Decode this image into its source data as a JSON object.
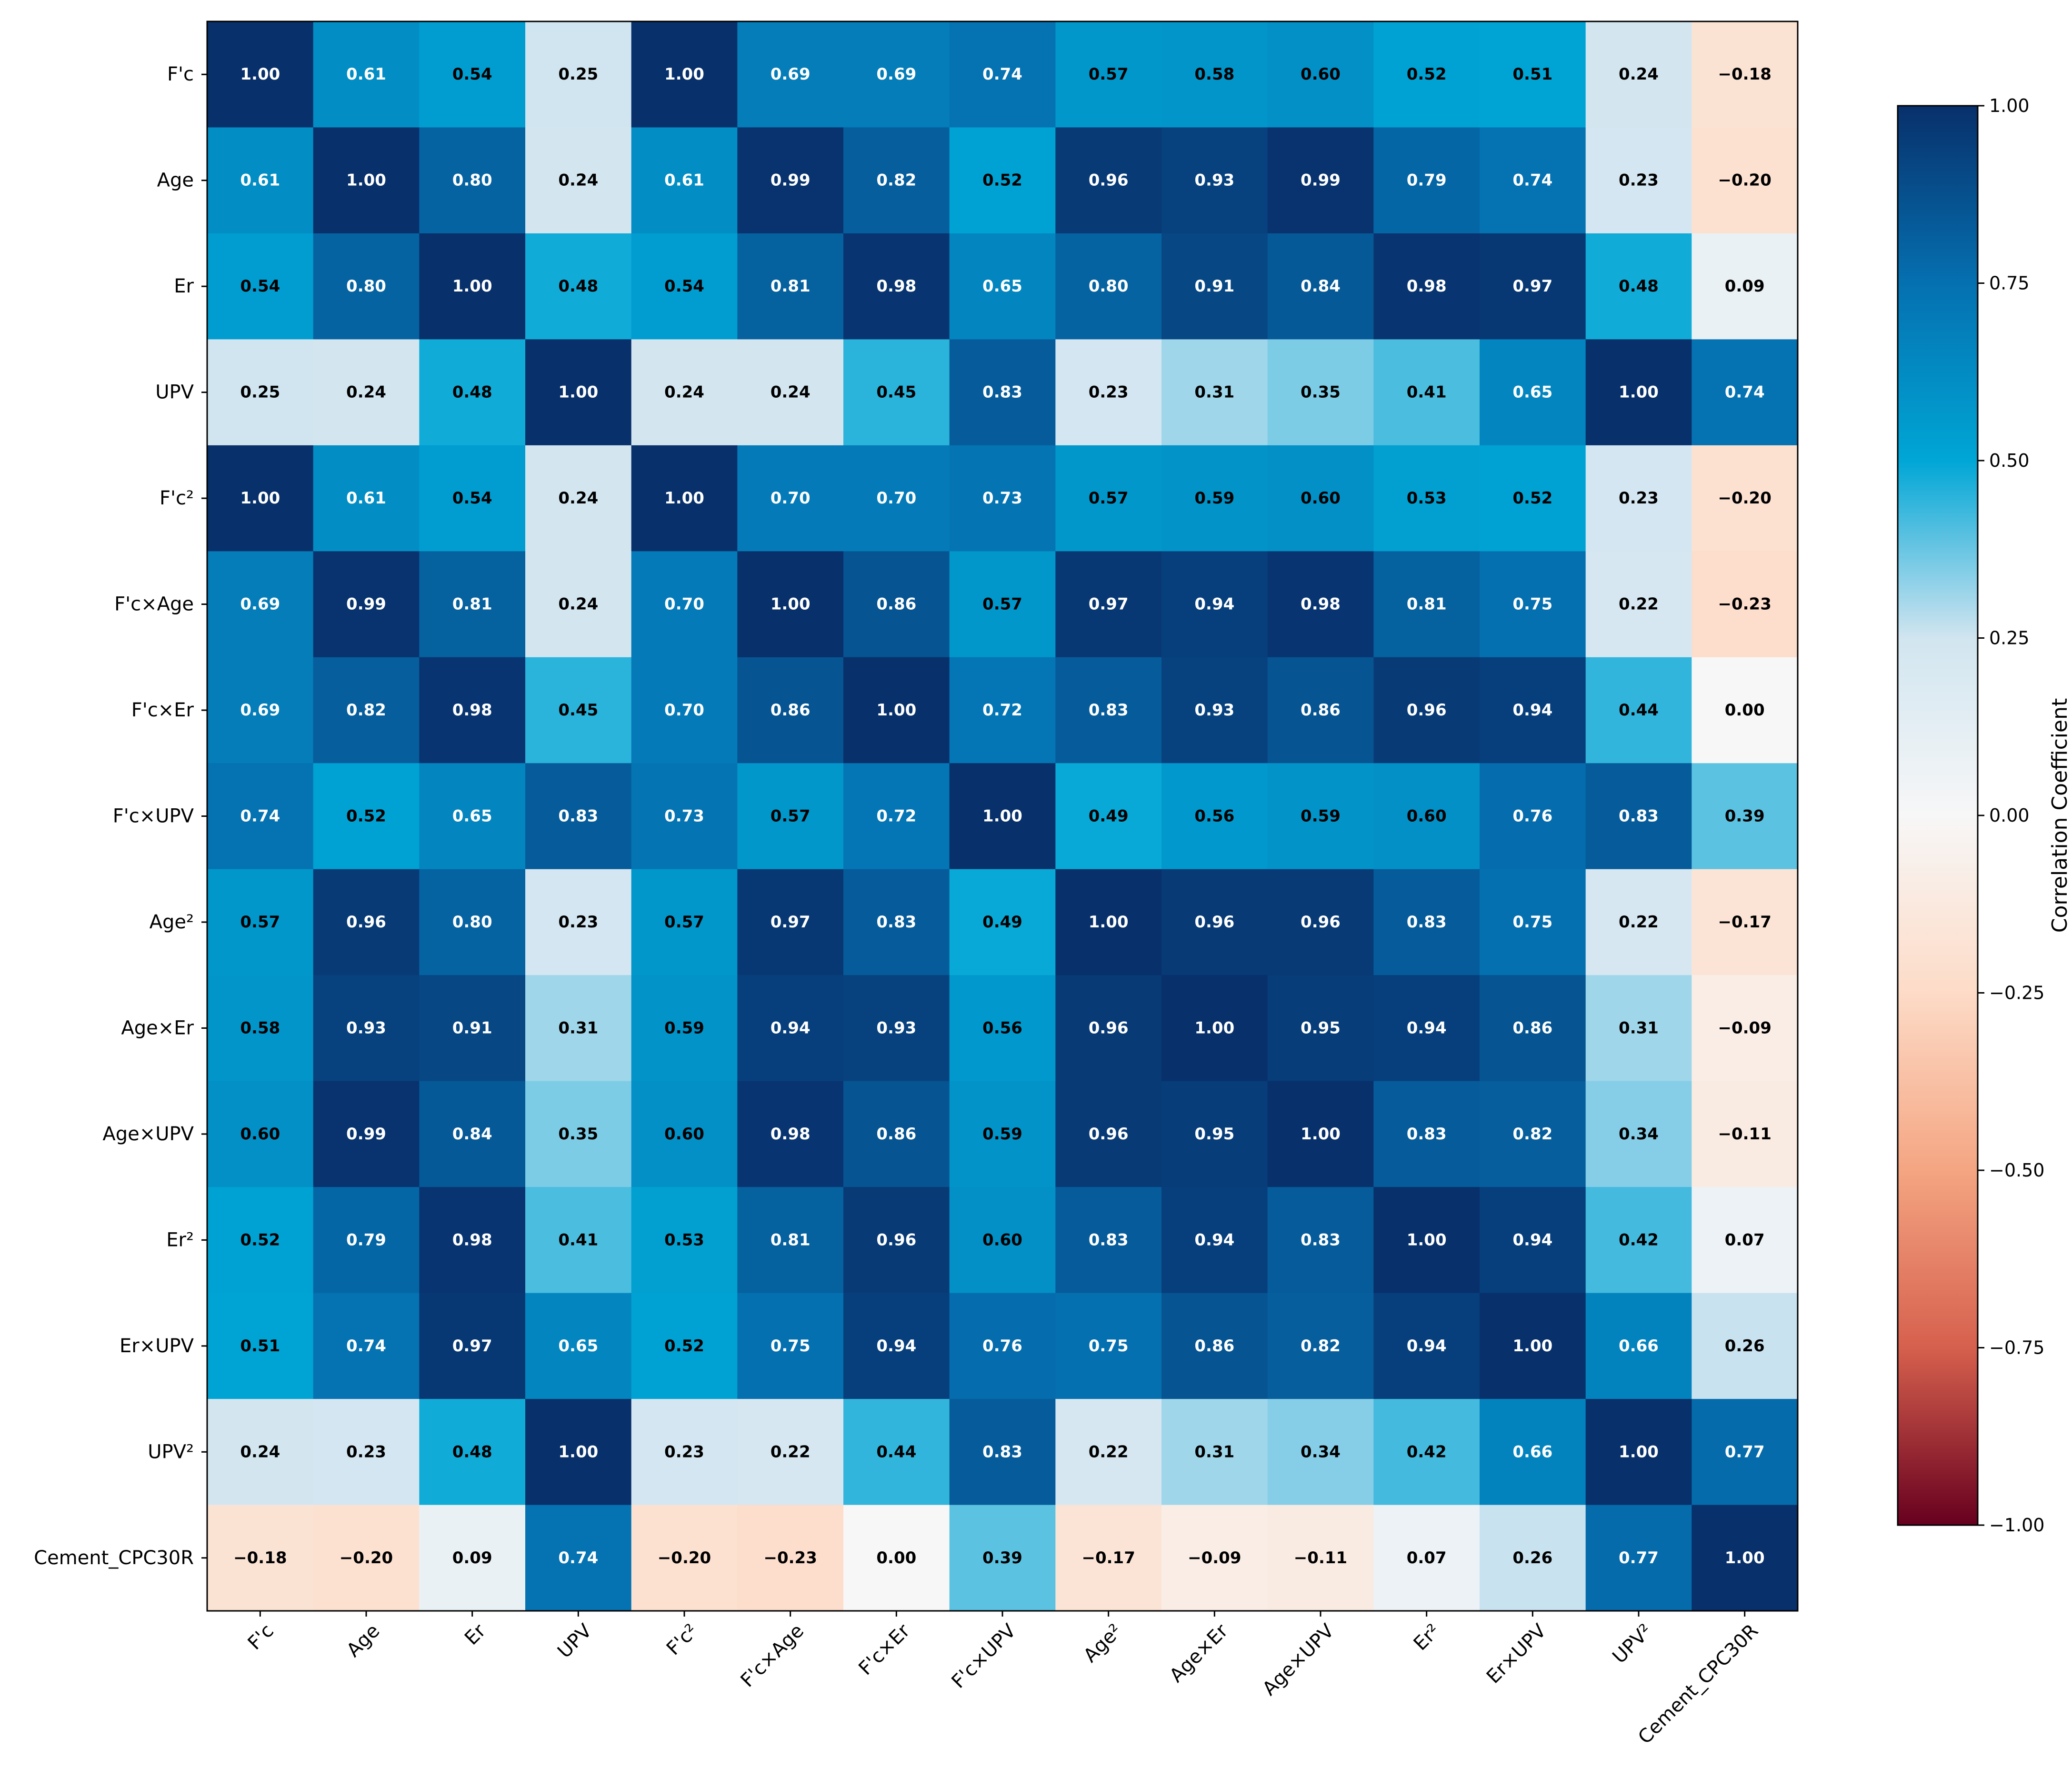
{
  "chart_data": {
    "type": "heatmap",
    "title": "",
    "labels": [
      "F'c",
      "Age",
      "Er",
      "UPV",
      "F'c²",
      "F'c×Age",
      "F'c×Er",
      "F'c×UPV",
      "Age²",
      "Age×Er",
      "Age×UPV",
      "Er²",
      "Er×UPV",
      "UPV²",
      "Cement_CPC30R"
    ],
    "matrix": [
      [
        1.0,
        0.61,
        0.54,
        0.25,
        1.0,
        0.69,
        0.69,
        0.74,
        0.57,
        0.58,
        0.6,
        0.52,
        0.51,
        0.24,
        -0.18
      ],
      [
        0.61,
        1.0,
        0.8,
        0.24,
        0.61,
        0.99,
        0.82,
        0.52,
        0.96,
        0.93,
        0.99,
        0.79,
        0.74,
        0.23,
        -0.2
      ],
      [
        0.54,
        0.8,
        1.0,
        0.48,
        0.54,
        0.81,
        0.98,
        0.65,
        0.8,
        0.91,
        0.84,
        0.98,
        0.97,
        0.48,
        0.09
      ],
      [
        0.25,
        0.24,
        0.48,
        1.0,
        0.24,
        0.24,
        0.45,
        0.83,
        0.23,
        0.31,
        0.35,
        0.41,
        0.65,
        1.0,
        0.74
      ],
      [
        1.0,
        0.61,
        0.54,
        0.24,
        1.0,
        0.7,
        0.7,
        0.73,
        0.57,
        0.59,
        0.6,
        0.53,
        0.52,
        0.23,
        -0.2
      ],
      [
        0.69,
        0.99,
        0.81,
        0.24,
        0.7,
        1.0,
        0.86,
        0.57,
        0.97,
        0.94,
        0.98,
        0.81,
        0.75,
        0.22,
        -0.23
      ],
      [
        0.69,
        0.82,
        0.98,
        0.45,
        0.7,
        0.86,
        1.0,
        0.72,
        0.83,
        0.93,
        0.86,
        0.96,
        0.94,
        0.44,
        0.0
      ],
      [
        0.74,
        0.52,
        0.65,
        0.83,
        0.73,
        0.57,
        0.72,
        1.0,
        0.49,
        0.56,
        0.59,
        0.6,
        0.76,
        0.83,
        0.39
      ],
      [
        0.57,
        0.96,
        0.8,
        0.23,
        0.57,
        0.97,
        0.83,
        0.49,
        1.0,
        0.96,
        0.96,
        0.83,
        0.75,
        0.22,
        -0.17
      ],
      [
        0.58,
        0.93,
        0.91,
        0.31,
        0.59,
        0.94,
        0.93,
        0.56,
        0.96,
        1.0,
        0.95,
        0.94,
        0.86,
        0.31,
        -0.09
      ],
      [
        0.6,
        0.99,
        0.84,
        0.35,
        0.6,
        0.98,
        0.86,
        0.59,
        0.96,
        0.95,
        1.0,
        0.83,
        0.82,
        0.34,
        -0.11
      ],
      [
        0.52,
        0.79,
        0.98,
        0.41,
        0.53,
        0.81,
        0.96,
        0.6,
        0.83,
        0.94,
        0.83,
        1.0,
        0.94,
        0.42,
        0.07
      ],
      [
        0.51,
        0.74,
        0.97,
        0.65,
        0.52,
        0.75,
        0.94,
        0.76,
        0.75,
        0.86,
        0.82,
        0.94,
        1.0,
        0.66,
        0.26
      ],
      [
        0.24,
        0.23,
        0.48,
        1.0,
        0.23,
        0.22,
        0.44,
        0.83,
        0.22,
        0.31,
        0.34,
        0.42,
        0.66,
        1.0,
        0.77
      ],
      [
        -0.18,
        -0.2,
        0.09,
        0.74,
        -0.2,
        -0.23,
        0.0,
        0.39,
        -0.17,
        -0.09,
        -0.11,
        0.07,
        0.26,
        0.77,
        1.0
      ]
    ],
    "colorbar": {
      "label": "Correlation Coefficient",
      "range": [
        -1.0,
        1.0
      ],
      "ticks": [
        1.0,
        0.75,
        0.5,
        0.25,
        0.0,
        -0.25,
        -0.5,
        -0.75,
        -1.0
      ],
      "tick_labels": [
        "1.00",
        "0.75",
        "0.50",
        "0.25",
        "0.00",
        "−0.25",
        "−0.50",
        "−0.75",
        "−1.00"
      ]
    },
    "colormap": {
      "name": "RdBu",
      "stops": [
        [
          -1.0,
          "#67001f"
        ],
        [
          -0.75,
          "#d6604d"
        ],
        [
          -0.5,
          "#f4a582"
        ],
        [
          -0.25,
          "#fddbc7"
        ],
        [
          0.0,
          "#f7f7f7"
        ],
        [
          0.25,
          "#d1e5f0"
        ],
        [
          0.5,
          "#00a6d6"
        ],
        [
          0.75,
          "#0570b0"
        ],
        [
          1.0,
          "#08306b"
        ]
      ]
    }
  }
}
